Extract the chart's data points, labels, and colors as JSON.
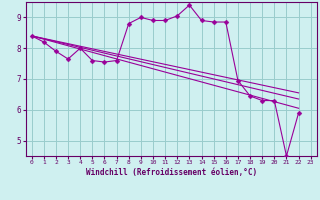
{
  "xlabel": "Windchill (Refroidissement éolien,°C)",
  "background_color": "#cff0f0",
  "line_color": "#990099",
  "grid_color": "#99cccc",
  "xlim": [
    -0.5,
    23.5
  ],
  "ylim": [
    4.5,
    9.5
  ],
  "yticks": [
    5,
    6,
    7,
    8,
    9
  ],
  "xticks": [
    0,
    1,
    2,
    3,
    4,
    5,
    6,
    7,
    8,
    9,
    10,
    11,
    12,
    13,
    14,
    15,
    16,
    17,
    18,
    19,
    20,
    21,
    22,
    23
  ],
  "series": [
    {
      "x": [
        0,
        1,
        2,
        3,
        4,
        5,
        6,
        7,
        8,
        9,
        10,
        11,
        12,
        13,
        14,
        15,
        16,
        17,
        18,
        19,
        20,
        21,
        22
      ],
      "y": [
        8.4,
        8.2,
        7.9,
        7.65,
        8.0,
        7.6,
        7.55,
        7.6,
        8.8,
        9.0,
        8.9,
        8.9,
        9.05,
        9.4,
        8.9,
        8.85,
        8.85,
        6.95,
        6.45,
        6.3,
        6.3,
        4.5,
        5.9
      ],
      "marker": "D",
      "markersize": 2.5
    },
    {
      "x": [
        0,
        22
      ],
      "y": [
        8.4,
        6.05
      ],
      "marker": null,
      "markersize": 0
    },
    {
      "x": [
        0,
        22
      ],
      "y": [
        8.4,
        6.35
      ],
      "marker": null,
      "markersize": 0
    },
    {
      "x": [
        0,
        22
      ],
      "y": [
        8.4,
        6.55
      ],
      "marker": null,
      "markersize": 0
    }
  ]
}
